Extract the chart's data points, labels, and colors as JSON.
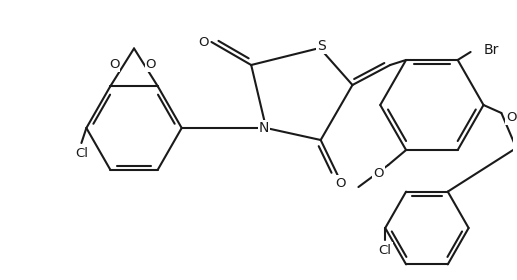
{
  "bg_color": "#ffffff",
  "line_color": "#1a1a1a",
  "line_width": 1.5,
  "font_size": 9.5,
  "figsize": [
    5.17,
    2.8
  ],
  "dpi": 100,
  "xlim": [
    0,
    517
  ],
  "ylim": [
    0,
    280
  ]
}
